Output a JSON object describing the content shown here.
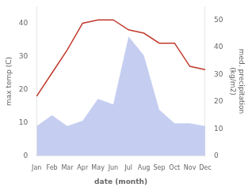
{
  "chart_data": {
    "type": "line",
    "xlabel": "date (month)",
    "ylabel": "max temp (C)",
    "y2label": "med. precipitation\n(kg/m2)",
    "categories": [
      "Jan",
      "Feb",
      "Mar",
      "Apr",
      "May",
      "Jun",
      "Jul",
      "Aug",
      "Sep",
      "Oct",
      "Nov",
      "Dec"
    ],
    "series": [
      {
        "type": "line",
        "color": "#c0392b",
        "values": [
          18,
          25,
          32,
          40,
          41,
          41,
          38,
          37,
          34,
          34,
          27,
          26
        ]
      },
      {
        "type": "area",
        "color": "#c5cef0",
        "axis": "y2",
        "values": [
          11,
          15,
          11,
          13,
          21,
          19,
          44,
          37,
          17,
          12,
          12,
          11
        ]
      }
    ],
    "ylim": [
      0,
      45
    ],
    "yticks": [
      0,
      10,
      20,
      30,
      40
    ],
    "y2lim": [
      0,
      55
    ],
    "y2ticks": [
      0,
      10,
      20,
      30,
      40,
      50
    ],
    "grid": false
  }
}
